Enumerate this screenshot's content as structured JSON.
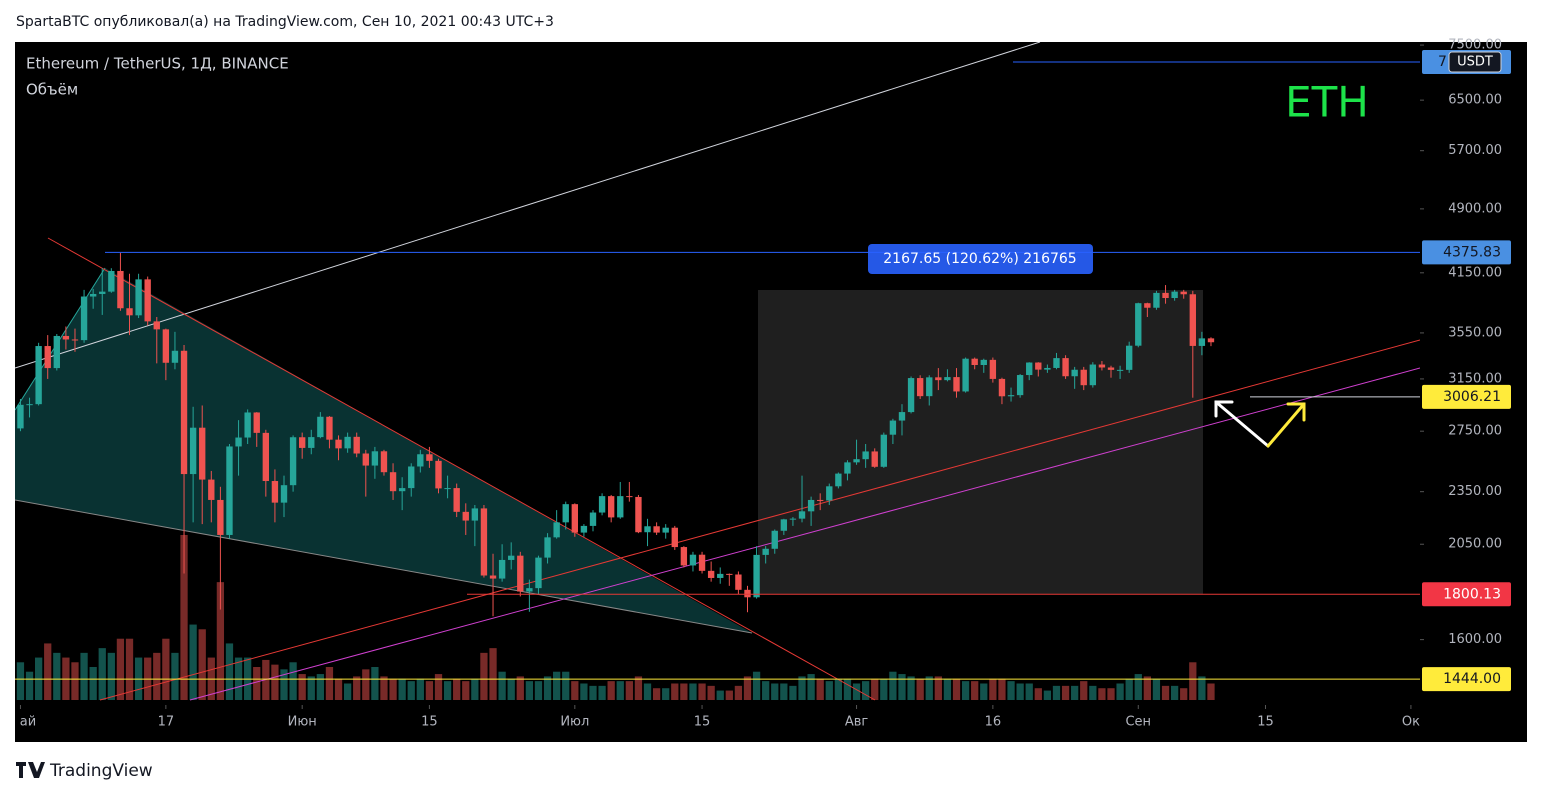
{
  "header": {
    "title": "SpartaBTC опубликовал(а) на TradingView.com, Сен 10, 2021 00:43 UTC+3"
  },
  "footer": {
    "brand": "TradingView"
  },
  "chart_data": {
    "type": "candlestick",
    "title": "Ethereum / TetherUS, 1Д, BINANCE",
    "indicator": "Объём",
    "annotation": "ETH",
    "currency": "USDT",
    "measure_label": "2167.65 (120.62%) 216765",
    "log_scale": true,
    "grid": false,
    "up_color": "#26a69a",
    "down_color": "#ef5350",
    "annotation_color": "#1de34a",
    "xlim": [
      -0.6,
      154
    ],
    "ylim": [
      1350,
      7560
    ],
    "yticks": [
      {
        "value": 1600,
        "label": "1600.00"
      },
      {
        "value": 2050,
        "label": "2050.00"
      },
      {
        "value": 2350,
        "label": "2350.00"
      },
      {
        "value": 2750,
        "label": "2750.00"
      },
      {
        "value": 3150,
        "label": "3150.00"
      },
      {
        "value": 3550,
        "label": "3550.00"
      },
      {
        "value": 4150,
        "label": "4150.00"
      },
      {
        "value": 4900,
        "label": "4900.00"
      },
      {
        "value": 5700,
        "label": "5700.00"
      },
      {
        "value": 6500,
        "label": "6500.00"
      },
      {
        "value": 7500,
        "label": "7500.00"
      }
    ],
    "xticks": [
      {
        "value": 0,
        "label": "ай"
      },
      {
        "value": 16,
        "label": "17"
      },
      {
        "value": 31,
        "label": "Июн"
      },
      {
        "value": 45,
        "label": "15"
      },
      {
        "value": 61,
        "label": "Июл"
      },
      {
        "value": 75,
        "label": "15"
      },
      {
        "value": 92,
        "label": "Авг"
      },
      {
        "value": 107,
        "label": "16"
      },
      {
        "value": 123,
        "label": "Сен"
      },
      {
        "value": 137,
        "label": "15"
      },
      {
        "value": 153,
        "label": "Ок"
      }
    ],
    "price_lines": [
      {
        "value": 7176,
        "label": "7",
        "line_color": "#2962ff",
        "badge_color": "#4a90e2",
        "text_color": "#131722"
      },
      {
        "value": 4375.83,
        "label": 4375.83,
        "line_color": "#2962ff",
        "badge_color": "#4a90e2",
        "text_color": "#131722"
      },
      {
        "value": 3006.21,
        "label": 3006.21,
        "line_color": "#d1d4dc",
        "badge_color": "#ffeb3b",
        "text_color": "#131722"
      },
      {
        "value": 1800.13,
        "label": 1800.13,
        "line_color": "#e53935",
        "badge_color": "#f23645",
        "text_color": "#ffffff"
      },
      {
        "value": 1444,
        "label": "1444.00",
        "line_color": "#ffeb3b",
        "badge_color": "#ffeb3b",
        "text_color": "#131722"
      }
    ],
    "open": [
      2770,
      2945,
      2950,
      3431,
      3240,
      3522,
      3490,
      3484,
      3902,
      3928,
      3952,
      4170,
      3785,
      3716,
      4080,
      3658,
      3583,
      3285,
      3389,
      2460,
      2775,
      2425,
      2300,
      2100,
      2643,
      2705,
      2887,
      2738,
      2416,
      2284,
      2390,
      2707,
      2633,
      2708,
      2855,
      2690,
      2630,
      2710,
      2595,
      2515,
      2610,
      2472,
      2353,
      2372,
      2509,
      2590,
      2546,
      2370,
      2372,
      2230,
      2180,
      2250,
      1890,
      1875,
      1968,
      1990,
      1813,
      1829,
      1980,
      2087,
      2170,
      2275,
      2113,
      2150,
      2226,
      2323,
      2198,
      2323,
      2318,
      2115,
      2148,
      2113,
      2140,
      2035,
      1940,
      1995,
      1913,
      1878,
      1898,
      1895,
      1821,
      1786,
      1994,
      2026,
      2123,
      2187,
      2191,
      2233,
      2300,
      2297,
      2383,
      2463,
      2536,
      2557,
      2609,
      2507,
      2725,
      2827,
      2890,
      3157,
      3012,
      3163,
      3140,
      3165,
      3049,
      3320,
      3266,
      3310,
      3150,
      3011,
      3020,
      3182,
      3287,
      3227,
      3241,
      3325,
      3172,
      3226,
      3099,
      3270,
      3245,
      3225,
      3225,
      3434,
      3835,
      3790,
      3939,
      3887,
      3952,
      3925,
      3432,
      3500
    ],
    "high": [
      2990,
      3000,
      3460,
      3530,
      3540,
      3610,
      3590,
      3970,
      3980,
      4200,
      4200,
      4372,
      4140,
      4140,
      4110,
      3700,
      3590,
      3560,
      3440,
      2930,
      2940,
      2480,
      2380,
      2660,
      2830,
      2910,
      2890,
      2760,
      2490,
      2450,
      2720,
      2740,
      2760,
      2890,
      2860,
      2720,
      2740,
      2740,
      2620,
      2640,
      2620,
      2530,
      2440,
      2530,
      2620,
      2640,
      2560,
      2450,
      2400,
      2280,
      2270,
      2270,
      2000,
      2050,
      2060,
      2010,
      1870,
      1990,
      2110,
      2240,
      2290,
      2280,
      2160,
      2240,
      2340,
      2330,
      2410,
      2410,
      2330,
      2190,
      2170,
      2160,
      2150,
      2040,
      2010,
      2010,
      1960,
      1930,
      1900,
      1910,
      1840,
      2040,
      2040,
      2130,
      2190,
      2200,
      2450,
      2320,
      2340,
      2400,
      2470,
      2550,
      2690,
      2660,
      2630,
      2740,
      2840,
      2950,
      3170,
      3180,
      3180,
      3240,
      3230,
      3240,
      3330,
      3330,
      3320,
      3330,
      3160,
      3080,
      3190,
      3290,
      3290,
      3270,
      3370,
      3350,
      3250,
      3250,
      3290,
      3300,
      3260,
      3260,
      3470,
      3840,
      3840,
      3960,
      4020,
      3970,
      3970,
      3960,
      3560,
      3510
    ],
    "low": [
      2750,
      2850,
      2940,
      3150,
      3220,
      3400,
      3380,
      3460,
      3780,
      3720,
      3940,
      3760,
      3530,
      3690,
      3620,
      3280,
      3140,
      3230,
      1900,
      2170,
      2160,
      2170,
      1730,
      2080,
      2450,
      2660,
      2640,
      2320,
      2170,
      2200,
      2350,
      2560,
      2590,
      2700,
      2630,
      2550,
      2600,
      2570,
      2320,
      2430,
      2450,
      2300,
      2240,
      2320,
      2470,
      2500,
      2340,
      2310,
      2200,
      2100,
      2040,
      1880,
      1700,
      1860,
      1920,
      1790,
      1720,
      1800,
      1950,
      2080,
      2130,
      2090,
      2090,
      2120,
      2210,
      2170,
      2190,
      2290,
      2110,
      2040,
      2100,
      2080,
      2020,
      1930,
      1910,
      1900,
      1860,
      1850,
      1840,
      1800,
      1718,
      1780,
      1950,
      2000,
      2100,
      2150,
      2170,
      2150,
      2240,
      2270,
      2370,
      2420,
      2520,
      2500,
      2500,
      2500,
      2660,
      2720,
      2880,
      2990,
      2940,
      3060,
      3130,
      3000,
      3040,
      3230,
      3200,
      3120,
      2950,
      2970,
      3000,
      3140,
      3170,
      3200,
      3230,
      3150,
      3070,
      3060,
      3080,
      3220,
      3160,
      3150,
      3200,
      3420,
      3700,
      3770,
      3830,
      3860,
      3880,
      3000,
      3350,
      3430
    ],
    "close": [
      2945,
      2950,
      3431,
      3240,
      3522,
      3490,
      3484,
      3902,
      3928,
      3952,
      4170,
      3785,
      3716,
      4080,
      3658,
      3583,
      3285,
      3389,
      2460,
      2775,
      2425,
      2300,
      2100,
      2643,
      2705,
      2887,
      2738,
      2416,
      2284,
      2390,
      2707,
      2633,
      2708,
      2855,
      2690,
      2630,
      2710,
      2595,
      2515,
      2610,
      2472,
      2353,
      2372,
      2509,
      2590,
      2546,
      2370,
      2372,
      2230,
      2180,
      2250,
      1890,
      1875,
      1968,
      1990,
      1813,
      1829,
      1980,
      2087,
      2170,
      2275,
      2113,
      2150,
      2226,
      2323,
      2198,
      2323,
      2318,
      2115,
      2148,
      2113,
      2140,
      2035,
      1940,
      1995,
      1913,
      1878,
      1898,
      1895,
      1821,
      1786,
      1994,
      2026,
      2123,
      2187,
      2191,
      2233,
      2300,
      2297,
      2383,
      2463,
      2536,
      2557,
      2609,
      2507,
      2725,
      2827,
      2890,
      3157,
      3012,
      3163,
      3140,
      3165,
      3049,
      3320,
      3266,
      3310,
      3150,
      3011,
      3020,
      3182,
      3287,
      3227,
      3241,
      3325,
      3172,
      3226,
      3099,
      3270,
      3245,
      3225,
      3225,
      3434,
      3835,
      3790,
      3939,
      3887,
      3952,
      3925,
      3432,
      3500,
      3465
    ],
    "volume": [
      800000,
      600000,
      900000,
      1200000,
      1000000,
      900000,
      800000,
      1000000,
      700000,
      1100000,
      1000000,
      1300000,
      1300000,
      900000,
      900000,
      1000000,
      1300000,
      1000000,
      3500000,
      1600000,
      1500000,
      900000,
      2500000,
      1200000,
      900000,
      900000,
      700000,
      850000,
      750000,
      650000,
      800000,
      550000,
      500000,
      550000,
      700000,
      450000,
      350000,
      500000,
      650000,
      700000,
      500000,
      450000,
      450000,
      400000,
      450000,
      400000,
      550000,
      400000,
      450000,
      400000,
      450000,
      1000000,
      1100000,
      600000,
      450000,
      500000,
      400000,
      400000,
      500000,
      600000,
      600000,
      400000,
      350000,
      300000,
      300000,
      400000,
      400000,
      400000,
      500000,
      350000,
      250000,
      250000,
      350000,
      350000,
      350000,
      350000,
      300000,
      200000,
      200000,
      300000,
      500000,
      600000,
      400000,
      350000,
      350000,
      300000,
      500000,
      550000,
      450000,
      400000,
      450000,
      450000,
      350000,
      400000,
      450000,
      450000,
      600000,
      550000,
      500000,
      450000,
      500000,
      500000,
      450000,
      450000,
      400000,
      400000,
      350000,
      450000,
      450000,
      400000,
      350000,
      350000,
      250000,
      200000,
      300000,
      300000,
      300000,
      400000,
      300000,
      250000,
      250000,
      350000,
      450000,
      550000,
      500000,
      450000,
      300000,
      300000,
      250000,
      800000,
      500000,
      350000
    ]
  }
}
